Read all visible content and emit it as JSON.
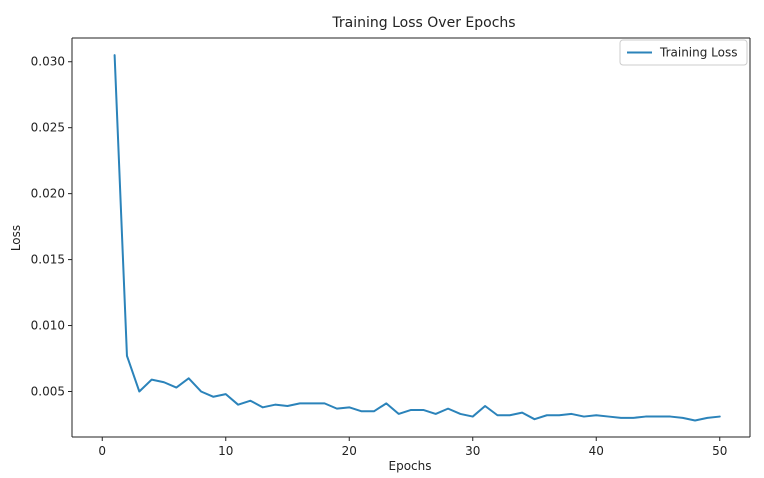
{
  "chart_data": {
    "type": "line",
    "title": "Training Loss Over Epochs",
    "xlabel": "Epochs",
    "ylabel": "Loss",
    "xlim": [
      -2.45,
      52.45
    ],
    "ylim": [
      0.00155,
      0.0318
    ],
    "xticks": [
      0,
      10,
      20,
      30,
      40,
      50
    ],
    "yticks": [
      0.005,
      0.01,
      0.015,
      0.02,
      0.025,
      0.03
    ],
    "ytick_labels": [
      "0.005",
      "0.010",
      "0.015",
      "0.020",
      "0.025",
      "0.030"
    ],
    "grid": false,
    "legend_position": "top-right",
    "colors": {
      "series": "#2b83ba",
      "axes": "#222222",
      "background": "#ffffff"
    },
    "series": [
      {
        "name": "Training Loss",
        "x": [
          1,
          2,
          3,
          4,
          5,
          6,
          7,
          8,
          9,
          10,
          11,
          12,
          13,
          14,
          15,
          16,
          17,
          18,
          19,
          20,
          21,
          22,
          23,
          24,
          25,
          26,
          27,
          28,
          29,
          30,
          31,
          32,
          33,
          34,
          35,
          36,
          37,
          38,
          39,
          40,
          41,
          42,
          43,
          44,
          45,
          46,
          47,
          48,
          49,
          50
        ],
        "y": [
          0.0305,
          0.0077,
          0.005,
          0.0059,
          0.0057,
          0.0053,
          0.006,
          0.005,
          0.0046,
          0.0048,
          0.004,
          0.0043,
          0.0038,
          0.004,
          0.0039,
          0.0041,
          0.0041,
          0.0041,
          0.0037,
          0.0038,
          0.0035,
          0.0035,
          0.0041,
          0.0033,
          0.0036,
          0.0036,
          0.0033,
          0.0037,
          0.0033,
          0.0031,
          0.0039,
          0.0032,
          0.0032,
          0.0034,
          0.0029,
          0.0032,
          0.0032,
          0.0033,
          0.0031,
          0.0032,
          0.0031,
          0.003,
          0.003,
          0.0031,
          0.0031,
          0.0031,
          0.003,
          0.0028,
          0.003,
          0.0031
        ]
      }
    ]
  }
}
